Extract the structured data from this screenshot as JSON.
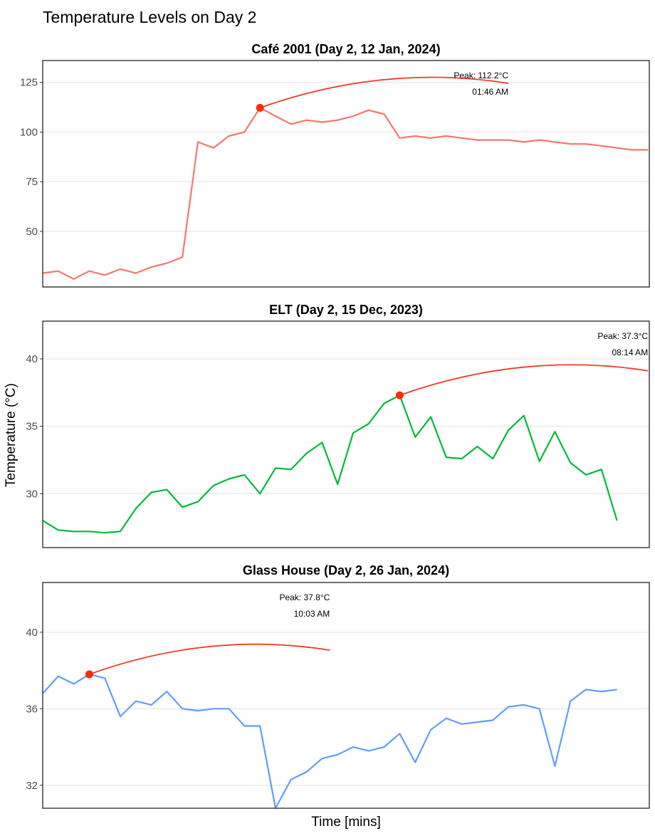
{
  "title": "Temperature Levels on Day 2",
  "xlabel": "Time [mins]",
  "ylabel": "Temperature (°C)",
  "chart_data": [
    {
      "type": "line",
      "title": "Café 2001 (Day 2, 12 Jan, 2024)",
      "color": "#f8766d",
      "ylim": [
        22,
        136
      ],
      "yticks": [
        50,
        75,
        100,
        125
      ],
      "grid": true,
      "values": [
        29,
        30,
        26,
        30,
        28,
        31,
        29,
        32,
        34,
        37,
        95,
        92,
        98,
        100,
        112.2,
        108,
        104,
        106,
        105,
        106,
        108,
        111,
        109,
        97,
        98,
        97,
        98,
        97,
        96,
        96,
        96,
        95,
        96,
        95,
        94,
        94,
        93,
        92,
        91,
        91
      ],
      "peak": {
        "index": 14,
        "label": "Peak: 112.2°C",
        "time": "01:46 AM",
        "arc_end": 30
      }
    },
    {
      "type": "line",
      "title": "ELT (Day 2, 15 Dec, 2023)",
      "color": "#00ba38",
      "ylim": [
        26,
        42.8
      ],
      "yticks": [
        30,
        35,
        40
      ],
      "grid": true,
      "values": [
        28.0,
        27.3,
        27.2,
        27.2,
        27.1,
        27.2,
        28.9,
        30.1,
        30.3,
        29.0,
        29.4,
        30.6,
        31.1,
        31.4,
        30.0,
        31.9,
        31.8,
        33.0,
        33.8,
        30.7,
        34.5,
        35.2,
        36.7,
        37.3,
        34.2,
        35.7,
        32.7,
        32.6,
        33.5,
        32.6,
        34.7,
        35.8,
        32.4,
        34.6,
        32.3,
        31.4,
        31.8,
        28.0
      ],
      "peak": {
        "index": 23,
        "label": "Peak: 37.3°C",
        "time": "08:14 AM",
        "arc_end": 39
      }
    },
    {
      "type": "line",
      "title": "Glass House (Day 2, 26 Jan, 2024)",
      "color": "#619cff",
      "ylim": [
        30.8,
        42.6
      ],
      "yticks": [
        32,
        36,
        40
      ],
      "grid": true,
      "values": [
        36.8,
        37.7,
        37.3,
        37.8,
        37.6,
        35.6,
        36.4,
        36.2,
        36.9,
        36.0,
        35.9,
        36.0,
        36.0,
        35.1,
        35.1,
        30.8,
        32.3,
        32.7,
        33.4,
        33.6,
        34.0,
        33.8,
        34.0,
        34.7,
        33.2,
        34.9,
        35.5,
        35.2,
        35.3,
        35.4,
        36.1,
        36.2,
        36.0,
        33.0,
        36.4,
        37.0,
        36.9,
        37.0
      ],
      "peak": {
        "index": 3,
        "label": "Peak: 37.8°C",
        "time": "10:03 AM",
        "arc_end": 18.5
      }
    }
  ]
}
